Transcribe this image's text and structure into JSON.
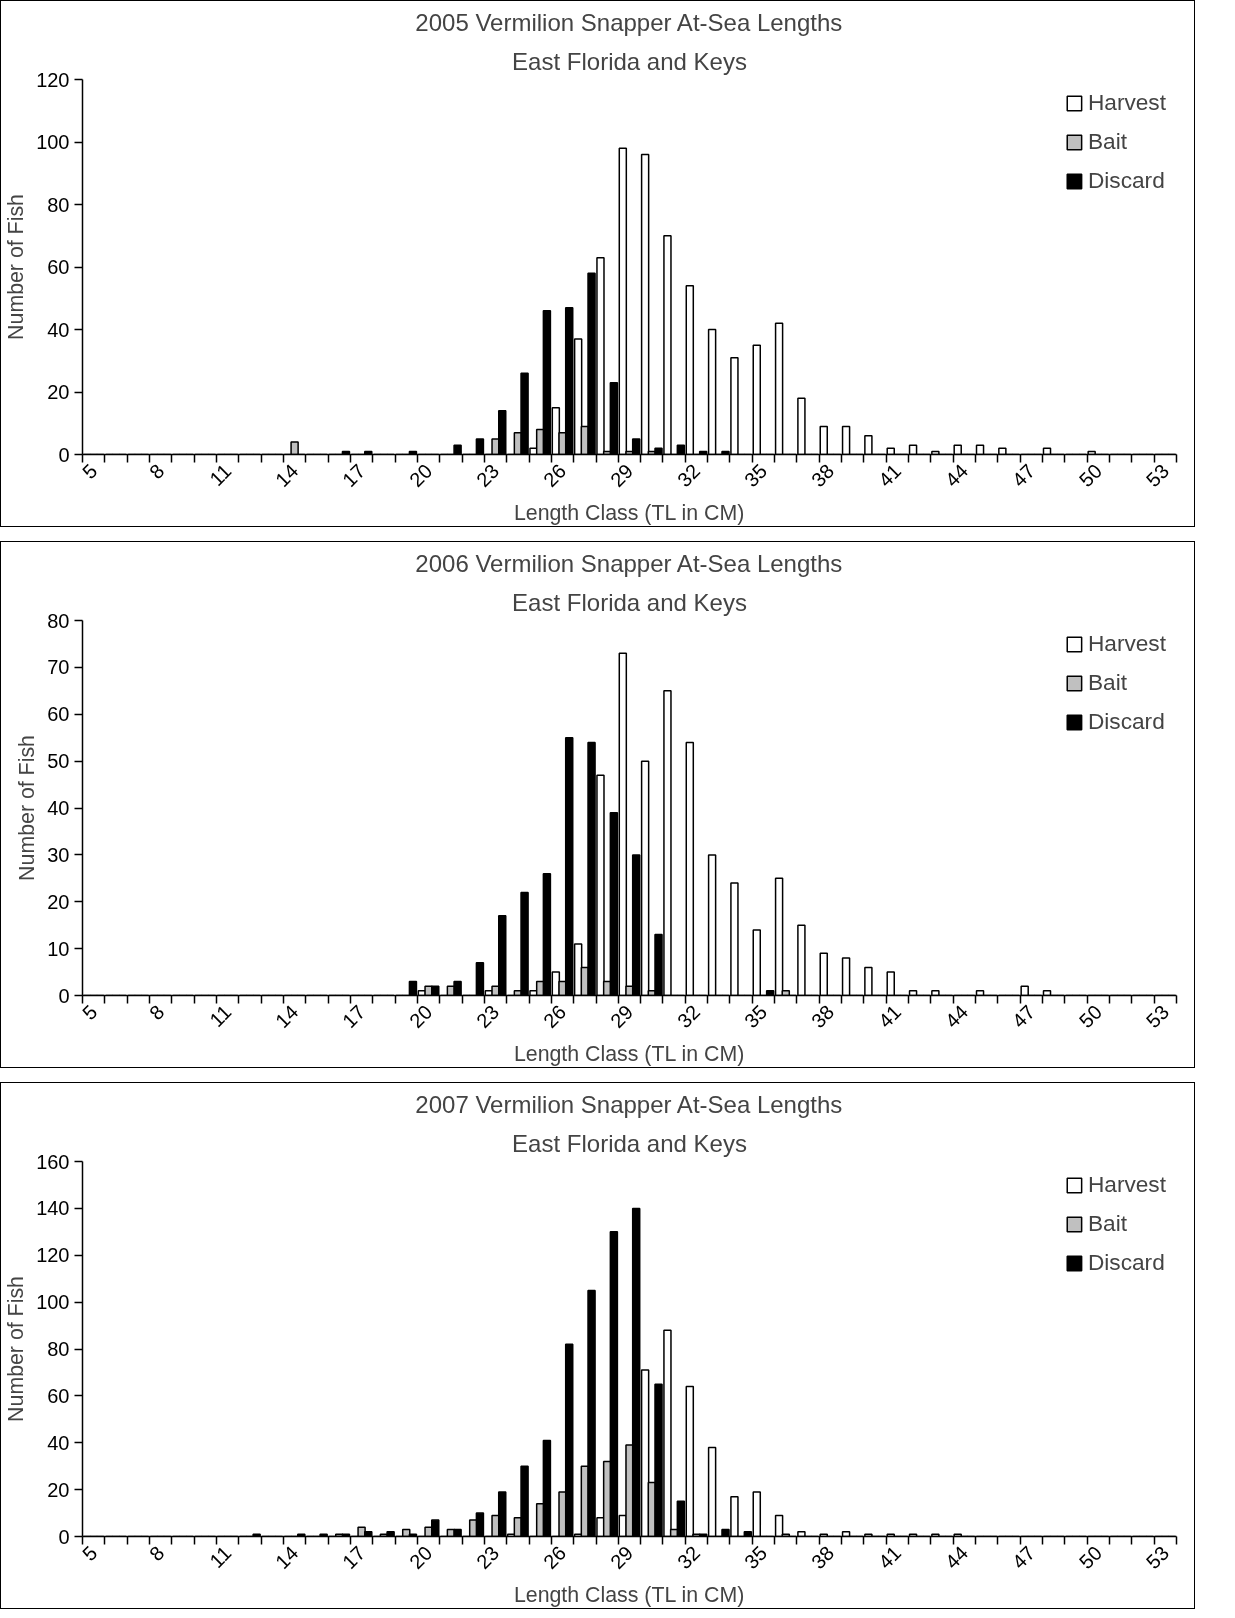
{
  "chart_data": [
    {
      "type": "bar",
      "title": "2005 Vermilion Snapper At-Sea Lengths",
      "subtitle": "East Florida and Keys",
      "xlabel": "Length Class (TL in CM)",
      "ylabel": "Number of Fish",
      "legend": "top right",
      "ylim": [
        0,
        120
      ],
      "yticks": [
        0,
        20,
        40,
        60,
        80,
        100,
        120
      ],
      "categories": [
        "5",
        null,
        null,
        "8",
        null,
        null,
        "11",
        null,
        null,
        "14",
        null,
        null,
        "17",
        null,
        null,
        "20",
        null,
        null,
        "23",
        null,
        null,
        "26",
        null,
        null,
        "29",
        null,
        null,
        "32",
        null,
        null,
        "35",
        null,
        null,
        "38",
        null,
        null,
        "41",
        null,
        null,
        "44",
        null,
        null,
        "47",
        null,
        null,
        "50",
        null,
        null,
        "53"
      ],
      "series": [
        {
          "name": "Harvest",
          "color": "#ffffff",
          "values": [
            0,
            0,
            0,
            0,
            0,
            0,
            0,
            0,
            0,
            0,
            0,
            0,
            0,
            0,
            0,
            0,
            0,
            0,
            0,
            0,
            2,
            15,
            37,
            63,
            98,
            96,
            70,
            54,
            40,
            31,
            35,
            42,
            18,
            9,
            9,
            6,
            2,
            3,
            1,
            3,
            3,
            2,
            0,
            2,
            0,
            1,
            0,
            0,
            0
          ]
        },
        {
          "name": "Bait",
          "color": "#c0c0c0",
          "values": [
            0,
            0,
            0,
            0,
            0,
            0,
            0,
            0,
            0,
            4,
            0,
            0,
            0,
            0,
            0,
            0,
            0,
            0,
            5,
            7,
            8,
            7,
            9,
            1,
            1,
            1,
            0,
            0,
            0,
            0,
            0,
            0,
            0,
            0,
            0,
            0,
            0,
            0,
            0,
            0,
            0,
            0,
            0,
            0,
            0,
            0,
            0,
            0,
            0
          ]
        },
        {
          "name": "Discard",
          "color": "#000000",
          "values": [
            0,
            0,
            0,
            0,
            0,
            0,
            0,
            0,
            0,
            0,
            0,
            1,
            1,
            0,
            1,
            0,
            3,
            5,
            14,
            26,
            46,
            47,
            58,
            23,
            5,
            2,
            3,
            1,
            1,
            0,
            0,
            0,
            0,
            0,
            0,
            0,
            0,
            0,
            0,
            0,
            0,
            0,
            0,
            0,
            0,
            0,
            0,
            0,
            0
          ]
        }
      ]
    },
    {
      "type": "bar",
      "title": "2006 Vermilion Snapper At-Sea Lengths",
      "subtitle": "East Florida and Keys",
      "xlabel": "Length Class (TL in CM)",
      "ylabel": "Number of Fish",
      "legend": "top right",
      "ylim": [
        0,
        80
      ],
      "yticks": [
        0,
        10,
        20,
        30,
        40,
        50,
        60,
        70,
        80
      ],
      "categories": [
        "5",
        null,
        null,
        "8",
        null,
        null,
        "11",
        null,
        null,
        "14",
        null,
        null,
        "17",
        null,
        null,
        "20",
        null,
        null,
        "23",
        null,
        null,
        "26",
        null,
        null,
        "29",
        null,
        null,
        "32",
        null,
        null,
        "35",
        null,
        null,
        "38",
        null,
        null,
        "41",
        null,
        null,
        "44",
        null,
        null,
        "47",
        null,
        null,
        "50",
        null,
        null,
        "53"
      ],
      "series": [
        {
          "name": "Harvest",
          "color": "#ffffff",
          "values": [
            0,
            0,
            0,
            0,
            0,
            0,
            0,
            0,
            0,
            0,
            0,
            0,
            0,
            0,
            0,
            1,
            0,
            0,
            1,
            0,
            1,
            5,
            11,
            47,
            73,
            50,
            65,
            54,
            30,
            24,
            14,
            25,
            15,
            9,
            8,
            6,
            5,
            1,
            1,
            0,
            1,
            0,
            2,
            1,
            0,
            0,
            0,
            0,
            0
          ]
        },
        {
          "name": "Bait",
          "color": "#c0c0c0",
          "values": [
            0,
            0,
            0,
            0,
            0,
            0,
            0,
            0,
            0,
            0,
            0,
            0,
            0,
            0,
            0,
            2,
            2,
            0,
            2,
            1,
            3,
            3,
            6,
            3,
            2,
            1,
            0,
            0,
            0,
            0,
            0,
            1,
            0,
            0,
            0,
            0,
            0,
            0,
            0,
            0,
            0,
            0,
            0,
            0,
            0,
            0,
            0,
            0,
            0
          ]
        },
        {
          "name": "Discard",
          "color": "#000000",
          "values": [
            0,
            0,
            0,
            0,
            0,
            0,
            0,
            0,
            0,
            0,
            0,
            0,
            0,
            0,
            3,
            2,
            3,
            7,
            17,
            22,
            26,
            55,
            54,
            39,
            30,
            13,
            0,
            0,
            0,
            0,
            1,
            0,
            0,
            0,
            0,
            0,
            0,
            0,
            0,
            0,
            0,
            0,
            0,
            0,
            0,
            0,
            0,
            0,
            0
          ]
        }
      ]
    },
    {
      "type": "bar",
      "title": "2007 Vermilion Snapper At-Sea Lengths",
      "subtitle": "East Florida and Keys",
      "xlabel": "Length Class (TL in CM)",
      "ylabel": "Number of Fish",
      "legend": "top right",
      "ylim": [
        0,
        160
      ],
      "yticks": [
        0,
        20,
        40,
        60,
        80,
        100,
        120,
        140,
        160
      ],
      "categories": [
        "5",
        null,
        null,
        "8",
        null,
        null,
        "11",
        null,
        null,
        "14",
        null,
        null,
        "17",
        null,
        null,
        "20",
        null,
        null,
        "23",
        null,
        null,
        "26",
        null,
        null,
        "29",
        null,
        null,
        "32",
        null,
        null,
        "35",
        null,
        null,
        "38",
        null,
        null,
        "41",
        null,
        null,
        "44",
        null,
        null,
        "47",
        null,
        null,
        "50",
        null,
        null,
        "53"
      ],
      "series": [
        {
          "name": "Harvest",
          "color": "#ffffff",
          "values": [
            0,
            0,
            0,
            0,
            0,
            0,
            0,
            0,
            0,
            0,
            0,
            0,
            0,
            0,
            0,
            0,
            0,
            0,
            0,
            1,
            0,
            0,
            1,
            8,
            9,
            71,
            88,
            64,
            38,
            17,
            19,
            9,
            2,
            1,
            2,
            1,
            1,
            1,
            1,
            1,
            0,
            0,
            0,
            0,
            0,
            0,
            0,
            0,
            0
          ]
        },
        {
          "name": "Bait",
          "color": "#c0c0c0",
          "values": [
            0,
            0,
            0,
            0,
            0,
            0,
            0,
            0,
            0,
            0,
            0,
            1,
            4,
            1,
            3,
            4,
            3,
            7,
            9,
            8,
            14,
            19,
            30,
            32,
            39,
            23,
            3,
            1,
            0,
            0,
            0,
            1,
            0,
            0,
            0,
            0,
            0,
            0,
            0,
            0,
            0,
            0,
            0,
            0,
            0,
            0,
            0,
            0,
            0
          ]
        },
        {
          "name": "Discard",
          "color": "#000000",
          "values": [
            0,
            0,
            0,
            0,
            0,
            0,
            0,
            1,
            0,
            1,
            1,
            1,
            2,
            2,
            1,
            7,
            3,
            10,
            19,
            30,
            41,
            82,
            105,
            130,
            140,
            65,
            15,
            1,
            3,
            2,
            0,
            0,
            0,
            0,
            0,
            0,
            0,
            0,
            0,
            0,
            0,
            0,
            0,
            0,
            0,
            0,
            0,
            0,
            0
          ]
        }
      ]
    }
  ]
}
